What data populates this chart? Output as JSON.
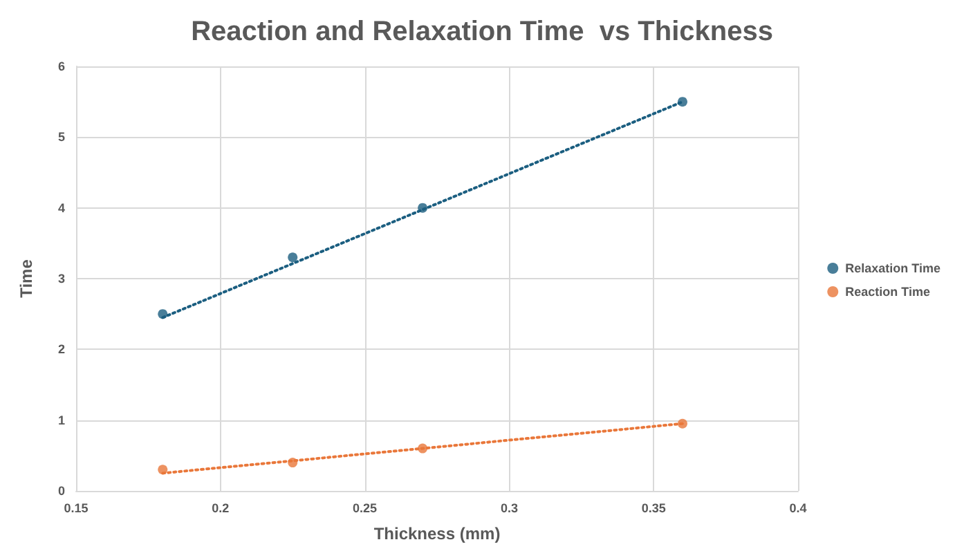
{
  "chart_data": {
    "type": "scatter",
    "title": "Reaction and Relaxation Time  vs Thickness",
    "xlabel": "Thickness (mm)",
    "ylabel": "Time",
    "xlim": [
      0.15,
      0.4
    ],
    "xticks": [
      0.15,
      0.2,
      0.25,
      0.3,
      0.35,
      0.4
    ],
    "ylim": [
      0,
      6
    ],
    "yticks": [
      0,
      1,
      2,
      3,
      4,
      5,
      6
    ],
    "grid": true,
    "legend": "right",
    "marker": "circle",
    "series": [
      {
        "name": "Relaxation Time",
        "color": "#1b5e80",
        "x": [
          0.18,
          0.225,
          0.27,
          0.36
        ],
        "values": [
          2.5,
          3.3,
          4.0,
          5.5
        ]
      },
      {
        "name": "Reaction Time",
        "color": "#e9773a",
        "x": [
          0.18,
          0.225,
          0.27,
          0.36
        ],
        "values": [
          0.3,
          0.4,
          0.6,
          0.95
        ]
      },
      {
        "type": "line",
        "color": "#1b5e80",
        "line_style": "dotted",
        "marker": "none",
        "x": [
          0.18,
          0.36
        ],
        "values": [
          2.45,
          5.5
        ]
      },
      {
        "type": "line",
        "color": "#e9773a",
        "line_style": "dotted",
        "marker": "none",
        "x": [
          0.18,
          0.36
        ],
        "values": [
          0.25,
          0.95
        ]
      }
    ]
  }
}
